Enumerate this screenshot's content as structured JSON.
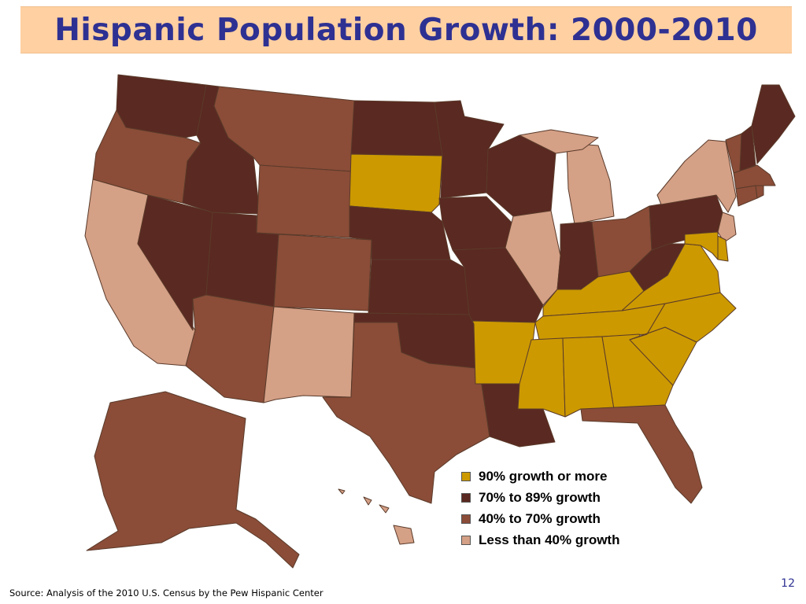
{
  "slide": {
    "title": "Hispanic Population Growth: 2000-2010",
    "source": "Source: Analysis of the 2010 U.S. Census by the Pew Hispanic Center",
    "page_number": "12"
  },
  "colors": {
    "growth_90_plus": "#cc9900",
    "growth_70_89": "#5a2921",
    "growth_40_70": "#8b4d38",
    "growth_lt_40": "#d4a086",
    "title_band": "#ffd0a1",
    "title_text": "#2e3192"
  },
  "legend": [
    {
      "category": "growth_90_plus",
      "label": "90% growth or more",
      "color": "#cc9900"
    },
    {
      "category": "growth_70_89",
      "label": "70% to 89% growth",
      "color": "#5a2921"
    },
    {
      "category": "growth_40_70",
      "label": "40% to 70% growth",
      "color": "#8b4d38"
    },
    {
      "category": "growth_lt_40",
      "label": "Less than 40% growth",
      "color": "#d4a086"
    }
  ],
  "states": [
    {
      "code": "WA",
      "category": "growth_70_89"
    },
    {
      "code": "OR",
      "category": "growth_40_70"
    },
    {
      "code": "CA",
      "category": "growth_lt_40"
    },
    {
      "code": "NV",
      "category": "growth_70_89"
    },
    {
      "code": "ID",
      "category": "growth_70_89"
    },
    {
      "code": "MT",
      "category": "growth_40_70"
    },
    {
      "code": "WY",
      "category": "growth_40_70"
    },
    {
      "code": "UT",
      "category": "growth_70_89"
    },
    {
      "code": "AZ",
      "category": "growth_40_70"
    },
    {
      "code": "CO",
      "category": "growth_40_70"
    },
    {
      "code": "NM",
      "category": "growth_lt_40"
    },
    {
      "code": "ND",
      "category": "growth_70_89"
    },
    {
      "code": "SD",
      "category": "growth_90_plus"
    },
    {
      "code": "NE",
      "category": "growth_70_89"
    },
    {
      "code": "KS",
      "category": "growth_70_89"
    },
    {
      "code": "OK",
      "category": "growth_70_89"
    },
    {
      "code": "TX",
      "category": "growth_40_70"
    },
    {
      "code": "MN",
      "category": "growth_70_89"
    },
    {
      "code": "IA",
      "category": "growth_70_89"
    },
    {
      "code": "MO",
      "category": "growth_70_89"
    },
    {
      "code": "AR",
      "category": "growth_90_plus"
    },
    {
      "code": "LA",
      "category": "growth_70_89"
    },
    {
      "code": "WI",
      "category": "growth_70_89"
    },
    {
      "code": "IL",
      "category": "growth_lt_40"
    },
    {
      "code": "MI",
      "category": "growth_lt_40"
    },
    {
      "code": "IN",
      "category": "growth_70_89"
    },
    {
      "code": "OH",
      "category": "growth_40_70"
    },
    {
      "code": "KY",
      "category": "growth_90_plus"
    },
    {
      "code": "TN",
      "category": "growth_90_plus"
    },
    {
      "code": "MS",
      "category": "growth_90_plus"
    },
    {
      "code": "AL",
      "category": "growth_90_plus"
    },
    {
      "code": "GA",
      "category": "growth_90_plus"
    },
    {
      "code": "FL",
      "category": "growth_40_70"
    },
    {
      "code": "SC",
      "category": "growth_90_plus"
    },
    {
      "code": "NC",
      "category": "growth_90_plus"
    },
    {
      "code": "VA",
      "category": "growth_90_plus"
    },
    {
      "code": "WV",
      "category": "growth_70_89"
    },
    {
      "code": "PA",
      "category": "growth_70_89"
    },
    {
      "code": "NY",
      "category": "growth_lt_40"
    },
    {
      "code": "NJ",
      "category": "growth_lt_40"
    },
    {
      "code": "DE",
      "category": "growth_90_plus"
    },
    {
      "code": "MD",
      "category": "growth_90_plus"
    },
    {
      "code": "VT",
      "category": "growth_40_70"
    },
    {
      "code": "NH",
      "category": "growth_70_89"
    },
    {
      "code": "ME",
      "category": "growth_70_89"
    },
    {
      "code": "MA",
      "category": "growth_40_70"
    },
    {
      "code": "CT",
      "category": "growth_40_70"
    },
    {
      "code": "RI",
      "category": "growth_40_70"
    },
    {
      "code": "AK",
      "category": "growth_40_70"
    },
    {
      "code": "HI",
      "category": "growth_lt_40"
    }
  ]
}
